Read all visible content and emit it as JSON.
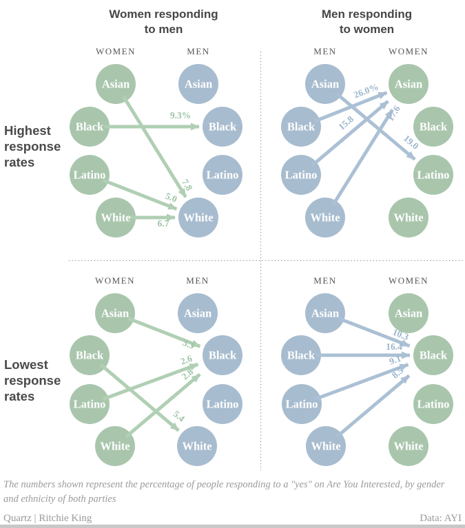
{
  "titles": {
    "left": [
      "Women responding",
      "to men"
    ],
    "right": [
      "Men responding",
      "to women"
    ]
  },
  "row_labels": {
    "top": "Highest response rates",
    "bottom": "Lowest response rates"
  },
  "ethnicities": [
    "Asian",
    "Black",
    "Latino",
    "White"
  ],
  "colors": {
    "women_circle": "#a9c6ad",
    "men_circle": "#a8bccf",
    "women_arrow": "#b0cfb4",
    "men_arrow": "#abc0d4",
    "women_label": "#9fc4a6",
    "men_label": "#9cb5cd",
    "circle_text": "#ffffff",
    "title_text": "#464646",
    "column_header_text": "#555555",
    "dotted_divider": "#8c8c8c",
    "footer_text": "#9a9a9a",
    "bottom_bar": "#c8c8c8"
  },
  "chart_data": {
    "type": "flow-diagram",
    "unit": "percent responding yes",
    "quadrants": [
      {
        "id": "top-left",
        "row": "Highest response rates",
        "title": "Women responding to men",
        "left_column": {
          "header": "WOMEN",
          "group": "women"
        },
        "right_column": {
          "header": "MEN",
          "group": "men"
        },
        "arrows": [
          {
            "from": "Black",
            "to": "Black",
            "label": "9.3%",
            "value": 9.3
          },
          {
            "from": "Asian",
            "to": "White",
            "label": "7.8",
            "value": 7.8
          },
          {
            "from": "Latino",
            "to": "White",
            "label": "5.0",
            "value": 5.0
          },
          {
            "from": "White",
            "to": "White",
            "label": "6.7",
            "value": 6.7
          }
        ]
      },
      {
        "id": "top-right",
        "row": "Highest response rates",
        "title": "Men responding to women",
        "left_column": {
          "header": "MEN",
          "group": "men"
        },
        "right_column": {
          "header": "WOMEN",
          "group": "women"
        },
        "arrows": [
          {
            "from": "Black",
            "to": "Asian",
            "label": "26.0%",
            "value": 26.0
          },
          {
            "from": "Latino",
            "to": "Asian",
            "label": "15.8",
            "value": 15.8
          },
          {
            "from": "White",
            "to": "Asian",
            "label": "17.6",
            "value": 17.6
          },
          {
            "from": "Asian",
            "to": "Latino",
            "label": "19.0",
            "value": 19.0
          }
        ]
      },
      {
        "id": "bottom-left",
        "row": "Lowest response rates",
        "title": "Women responding to men",
        "left_column": {
          "header": "WOMEN",
          "group": "women"
        },
        "right_column": {
          "header": "MEN",
          "group": "men"
        },
        "arrows": [
          {
            "from": "Asian",
            "to": "Black",
            "label": "3.3",
            "value": 3.3
          },
          {
            "from": "Latino",
            "to": "Black",
            "label": "2.6",
            "value": 2.6
          },
          {
            "from": "White",
            "to": "Black",
            "label": "2.8",
            "value": 2.8
          },
          {
            "from": "Black",
            "to": "White",
            "label": "5.4",
            "value": 5.4
          }
        ]
      },
      {
        "id": "bottom-right",
        "row": "Lowest response rates",
        "title": "Men responding to women",
        "left_column": {
          "header": "MEN",
          "group": "men"
        },
        "right_column": {
          "header": "WOMEN",
          "group": "women"
        },
        "arrows": [
          {
            "from": "Asian",
            "to": "Black",
            "label": "10.3",
            "value": 10.3
          },
          {
            "from": "Black",
            "to": "Black",
            "label": "16.4",
            "value": 16.4
          },
          {
            "from": "Latino",
            "to": "Black",
            "label": "9.1",
            "value": 9.1
          },
          {
            "from": "White",
            "to": "Black",
            "label": "8.5",
            "value": 8.5
          }
        ]
      }
    ]
  },
  "footer": {
    "note": "The numbers shown represent the percentage of people responding to a \"yes\" on Are You Interested, by gender and ethnicity of both parties",
    "credit_left": "Quartz | Ritchie King",
    "credit_right": "Data: AYI"
  }
}
